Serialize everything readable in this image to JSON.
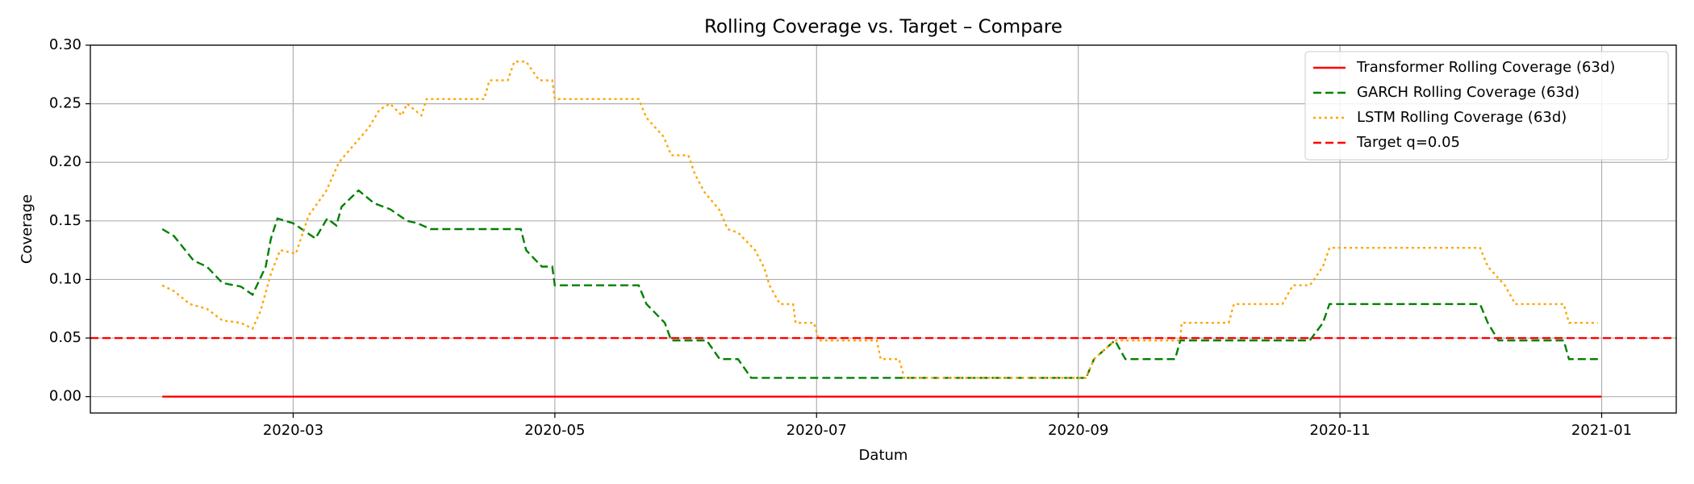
{
  "chart_data": {
    "type": "line",
    "title": "Rolling Coverage vs. Target – Compare",
    "xlabel": "Datum",
    "ylabel": "Coverage",
    "xlim": [
      1.45,
      13.57
    ],
    "ylim": [
      -0.014,
      0.3
    ],
    "xticks": [
      {
        "value": 3,
        "label": "2020-03"
      },
      {
        "value": 5,
        "label": "2020-05"
      },
      {
        "value": 7,
        "label": "2020-07"
      },
      {
        "value": 9,
        "label": "2020-09"
      },
      {
        "value": 11,
        "label": "2020-11"
      },
      {
        "value": 13,
        "label": "2021-01"
      }
    ],
    "yticks": [
      {
        "value": 0,
        "label": "0.00"
      },
      {
        "value": 0.05,
        "label": "0.05"
      },
      {
        "value": 0.1,
        "label": "0.10"
      },
      {
        "value": 0.15,
        "label": "0.15"
      },
      {
        "value": 0.2,
        "label": "0.20"
      },
      {
        "value": 0.25,
        "label": "0.25"
      },
      {
        "value": 0.3,
        "label": "0.30"
      }
    ],
    "grid": true,
    "legend": "upper right",
    "series": [
      {
        "name": "Transformer Rolling Coverage (63d)",
        "color": "#ff0000",
        "linestyle": "solid",
        "x": [
          2.0,
          13.0
        ],
        "values": [
          0,
          0
        ]
      },
      {
        "name": "GARCH Rolling Coverage (63d)",
        "color": "#008000",
        "linestyle": "dashed",
        "x": [
          2.0,
          2.09,
          2.24,
          2.34,
          2.46,
          2.6,
          2.69,
          2.79,
          2.83,
          2.88,
          3.0,
          3.17,
          3.26,
          3.33,
          3.37,
          3.5,
          3.62,
          3.74,
          3.87,
          3.95,
          4.05,
          4.74,
          4.78,
          4.9,
          4.98,
          5.0,
          5.64,
          5.7,
          5.84,
          5.89,
          6.16,
          6.26,
          6.4,
          6.5,
          9.06,
          9.12,
          9.28,
          9.36,
          9.74,
          9.78,
          10.77,
          10.87,
          10.92,
          12.07,
          12.13,
          12.21,
          12.71,
          12.75,
          13.0
        ],
        "values": [
          0.143,
          0.137,
          0.116,
          0.111,
          0.097,
          0.094,
          0.087,
          0.111,
          0.135,
          0.152,
          0.148,
          0.135,
          0.152,
          0.146,
          0.162,
          0.176,
          0.165,
          0.16,
          0.15,
          0.148,
          0.143,
          0.143,
          0.125,
          0.111,
          0.111,
          0.095,
          0.095,
          0.079,
          0.063,
          0.048,
          0.048,
          0.032,
          0.032,
          0.016,
          0.016,
          0.032,
          0.048,
          0.032,
          0.032,
          0.048,
          0.048,
          0.063,
          0.079,
          0.079,
          0.063,
          0.048,
          0.048,
          0.032,
          0.032
        ]
      },
      {
        "name": "LSTM Rolling Coverage (63d)",
        "color": "#ffa500",
        "linestyle": "dotted",
        "x": [
          2.0,
          2.09,
          2.21,
          2.34,
          2.46,
          2.6,
          2.69,
          2.75,
          2.83,
          2.9,
          3.02,
          3.12,
          3.25,
          3.35,
          3.45,
          3.58,
          3.66,
          3.74,
          3.83,
          3.87,
          3.98,
          4.02,
          4.46,
          4.5,
          4.64,
          4.69,
          4.78,
          4.88,
          4.98,
          5.0,
          5.64,
          5.7,
          5.83,
          5.89,
          6.02,
          6.07,
          6.14,
          6.26,
          6.32,
          6.4,
          6.53,
          6.6,
          6.64,
          6.72,
          6.82,
          6.84,
          6.98,
          7.02,
          7.46,
          7.49,
          7.63,
          7.67,
          9.06,
          9.12,
          9.28,
          9.78,
          9.79,
          10.15,
          10.19,
          10.56,
          10.64,
          10.77,
          10.87,
          10.92,
          12.07,
          12.13,
          12.26,
          12.34,
          12.71,
          12.75,
          12.97
        ],
        "values": [
          0.095,
          0.09,
          0.079,
          0.075,
          0.065,
          0.063,
          0.058,
          0.073,
          0.105,
          0.125,
          0.122,
          0.155,
          0.175,
          0.2,
          0.213,
          0.23,
          0.245,
          0.25,
          0.24,
          0.25,
          0.24,
          0.254,
          0.254,
          0.27,
          0.27,
          0.286,
          0.286,
          0.27,
          0.27,
          0.254,
          0.254,
          0.238,
          0.222,
          0.206,
          0.206,
          0.19,
          0.175,
          0.159,
          0.143,
          0.14,
          0.125,
          0.11,
          0.095,
          0.079,
          0.079,
          0.063,
          0.063,
          0.048,
          0.048,
          0.032,
          0.032,
          0.016,
          0.016,
          0.032,
          0.048,
          0.048,
          0.063,
          0.063,
          0.079,
          0.079,
          0.095,
          0.095,
          0.111,
          0.127,
          0.127,
          0.111,
          0.095,
          0.079,
          0.079,
          0.063,
          0.063
        ]
      }
    ],
    "target": {
      "name": "Target q=0.05",
      "value": 0.05,
      "color": "#ff0000",
      "linestyle": "dashed"
    }
  }
}
